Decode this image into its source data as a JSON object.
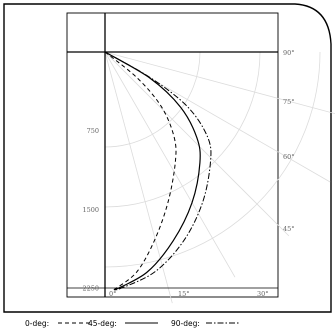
{
  "chart_data": {
    "type": "line",
    "title": "",
    "xlabel": "",
    "ylabel": "",
    "y_ticks": [
      "750",
      "1500",
      "2250"
    ],
    "bottom_angle_ticks": [
      "0°",
      "15°",
      "30°"
    ],
    "right_angle_ticks": [
      "90°",
      "75°",
      "60°",
      "45°"
    ],
    "ylim": [
      0,
      2250
    ],
    "grid": true,
    "legend_position": "bottom",
    "series": [
      {
        "name": "0-deg:",
        "style": "dashed",
        "points": [
          [
            0,
            0
          ],
          [
            310,
            250
          ],
          [
            540,
            525
          ],
          [
            660,
            815
          ],
          [
            670,
            1055
          ],
          [
            600,
            1435
          ],
          [
            470,
            1800
          ],
          [
            300,
            2100
          ],
          [
            80,
            2270
          ]
        ]
      },
      {
        "name": "45-deg:",
        "style": "solid",
        "points": [
          [
            0,
            0
          ],
          [
            430,
            250
          ],
          [
            720,
            525
          ],
          [
            875,
            815
          ],
          [
            905,
            1055
          ],
          [
            830,
            1435
          ],
          [
            650,
            1800
          ],
          [
            400,
            2100
          ],
          [
            90,
            2270
          ]
        ]
      },
      {
        "name": "90-deg:",
        "style": "dashdot",
        "points": [
          [
            0,
            0
          ],
          [
            440,
            250
          ],
          [
            790,
            525
          ],
          [
            980,
            815
          ],
          [
            1005,
            1055
          ],
          [
            930,
            1435
          ],
          [
            750,
            1800
          ],
          [
            470,
            2100
          ],
          [
            110,
            2270
          ]
        ]
      }
    ],
    "colors": {
      "lines": "#000000",
      "grid": "#dcdcdc",
      "ticks": "#666666"
    }
  }
}
